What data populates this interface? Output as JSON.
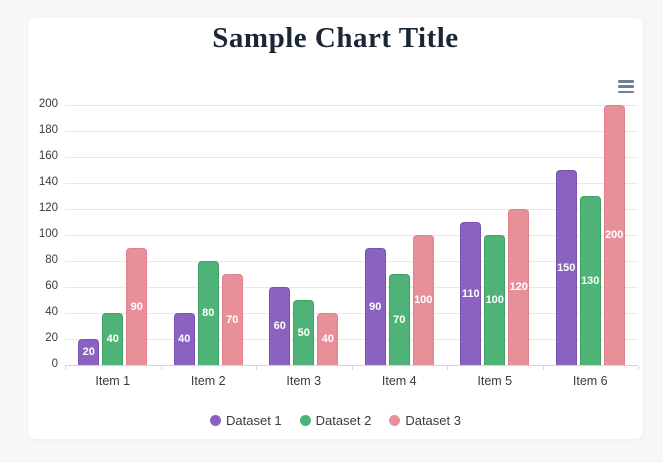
{
  "theme": {
    "page_background": "#f7f7f7",
    "card_background": "#ffffff",
    "title_color": "#1c2735",
    "grid_color": "#e9e9e9",
    "axis_line_color": "#d4d4d4",
    "tick_label_color": "#373d3f",
    "legend_text_color": "#373d3f",
    "bar_value_label_color": "#ffffff",
    "menu_icon_color": "#6e8192"
  },
  "toolbar": {
    "menu_icon": "hamburger-menu-icon"
  },
  "chart_data": {
    "type": "bar",
    "title": "Sample Chart Title",
    "categories": [
      "Item 1",
      "Item 2",
      "Item 3",
      "Item 4",
      "Item 5",
      "Item 6"
    ],
    "series": [
      {
        "name": "Dataset 1",
        "color": "#8a63c0",
        "border_color": "#7a52b3",
        "values": [
          20,
          40,
          60,
          90,
          110,
          150
        ]
      },
      {
        "name": "Dataset 2",
        "color": "#4fb377",
        "border_color": "#3ea266",
        "values": [
          40,
          80,
          50,
          70,
          100,
          130
        ]
      },
      {
        "name": "Dataset 3",
        "color": "#e8909a",
        "border_color": "#e27f8c",
        "values": [
          90,
          70,
          40,
          100,
          120,
          200
        ]
      }
    ],
    "xlabel": "",
    "ylabel": "",
    "ylim": [
      0,
      200
    ],
    "yticks": [
      0,
      20,
      40,
      60,
      80,
      100,
      120,
      140,
      160,
      180,
      200
    ],
    "grid": "horizontal",
    "legend_position": "bottom",
    "value_labels": "inside-center"
  }
}
